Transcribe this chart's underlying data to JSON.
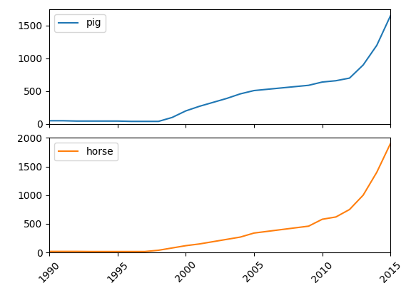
{
  "years": [
    1990,
    1991,
    1992,
    1993,
    1994,
    1995,
    1996,
    1997,
    1998,
    1999,
    2000,
    2001,
    2002,
    2003,
    2004,
    2005,
    2006,
    2007,
    2008,
    2009,
    2010,
    2011,
    2012,
    2013,
    2014,
    2015
  ],
  "pig": [
    50,
    50,
    45,
    45,
    45,
    45,
    40,
    40,
    40,
    100,
    200,
    270,
    330,
    390,
    460,
    510,
    530,
    550,
    570,
    590,
    640,
    660,
    700,
    900,
    1200,
    1650
  ],
  "horse": [
    20,
    20,
    20,
    18,
    18,
    18,
    18,
    18,
    40,
    80,
    120,
    150,
    190,
    230,
    270,
    340,
    370,
    400,
    430,
    460,
    580,
    620,
    750,
    1000,
    1400,
    1900
  ],
  "pig_color": "#1f77b4",
  "horse_color": "#ff7f0e",
  "pig_label": "pig",
  "horse_label": "horse",
  "xlim": [
    1990,
    2015
  ],
  "pig_ylim": [
    0,
    1750
  ],
  "horse_ylim": [
    0,
    2000
  ],
  "pig_yticks": [
    0,
    500,
    1000,
    1500
  ],
  "horse_yticks": [
    0,
    500,
    1000,
    1500,
    2000
  ],
  "xticks": [
    1990,
    1995,
    2000,
    2005,
    2010,
    2015
  ],
  "figsize": [
    5.76,
    4.32
  ],
  "dpi": 100
}
